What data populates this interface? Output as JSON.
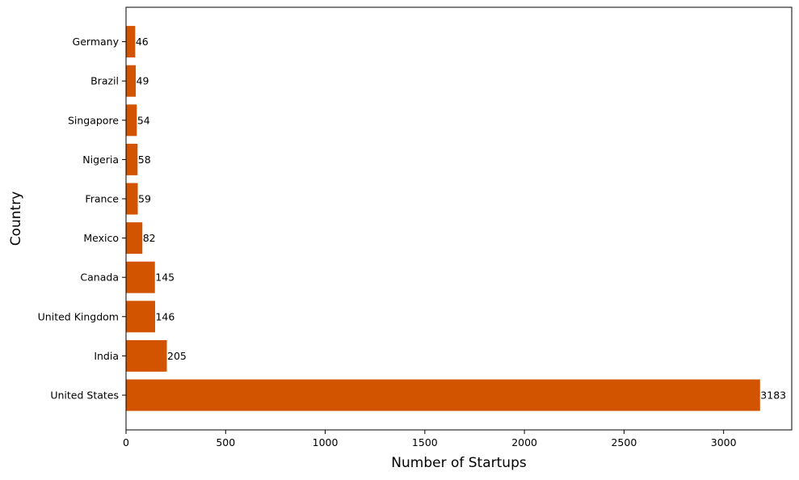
{
  "chart_data": {
    "type": "bar",
    "orientation": "horizontal",
    "xlabel": "Number of Startups",
    "ylabel": "Country",
    "categories": [
      "United States",
      "India",
      "United Kingdom",
      "Canada",
      "Mexico",
      "France",
      "Nigeria",
      "Singapore",
      "Brazil",
      "Germany"
    ],
    "values": [
      3183,
      205,
      146,
      145,
      82,
      59,
      58,
      54,
      49,
      46
    ],
    "xlim": [
      0,
      3342
    ],
    "xticks": [
      0,
      500,
      1000,
      1500,
      2000,
      2500,
      3000
    ],
    "bar_color": "#d35400",
    "grid": false,
    "legend": "none"
  }
}
